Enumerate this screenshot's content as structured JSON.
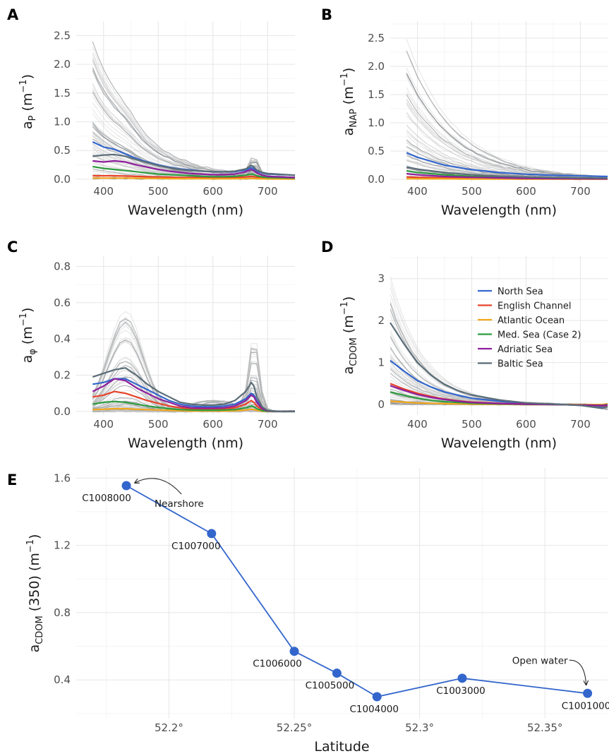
{
  "chart_data": [
    {
      "panel": "A",
      "type": "line",
      "xlabel": "Wavelength (nm)",
      "ylabel": {
        "base": "a",
        "sub": "P",
        "unit": "(m",
        "sup": "−1",
        "close": ")"
      },
      "xlim": [
        350,
        750
      ],
      "ylim": [
        -0.05,
        2.75
      ],
      "xticks": [
        400,
        500,
        600,
        700
      ],
      "yticks": [
        0.0,
        0.5,
        1.0,
        1.5,
        2.0,
        2.5
      ],
      "ytick_labels": [
        "0.0",
        "0.5",
        "1.0",
        "1.5",
        "2.0",
        "2.5"
      ],
      "x": [
        380,
        400,
        420,
        440,
        460,
        480,
        500,
        520,
        540,
        560,
        580,
        600,
        620,
        640,
        660,
        670,
        675,
        680,
        690,
        700,
        750
      ],
      "series": [
        {
          "name": "North Sea",
          "values": [
            0.65,
            0.56,
            0.52,
            0.44,
            0.36,
            0.3,
            0.25,
            0.21,
            0.18,
            0.16,
            0.14,
            0.13,
            0.13,
            0.13,
            0.16,
            0.2,
            0.18,
            0.14,
            0.11,
            0.09,
            0.07
          ]
        },
        {
          "name": "English Channel",
          "values": [
            0.06,
            0.06,
            0.06,
            0.055,
            0.05,
            0.045,
            0.04,
            0.035,
            0.03,
            0.03,
            0.028,
            0.026,
            0.026,
            0.03,
            0.04,
            0.05,
            0.045,
            0.035,
            0.025,
            0.02,
            0.015
          ]
        },
        {
          "name": "Atlantic Ocean",
          "values": [
            0.02,
            0.02,
            0.02,
            0.02,
            0.018,
            0.016,
            0.014,
            0.012,
            0.01,
            0.01,
            0.009,
            0.008,
            0.008,
            0.009,
            0.012,
            0.015,
            0.013,
            0.01,
            0.007,
            0.005,
            0.003
          ]
        },
        {
          "name": "Med. Sea (Case 2)",
          "values": [
            0.22,
            0.19,
            0.17,
            0.15,
            0.13,
            0.11,
            0.09,
            0.08,
            0.07,
            0.06,
            0.05,
            0.045,
            0.045,
            0.05,
            0.07,
            0.09,
            0.08,
            0.06,
            0.04,
            0.03,
            0.02
          ]
        },
        {
          "name": "Adriatic Sea",
          "values": [
            0.32,
            0.3,
            0.32,
            0.3,
            0.25,
            0.21,
            0.17,
            0.14,
            0.12,
            0.1,
            0.09,
            0.08,
            0.08,
            0.09,
            0.13,
            0.17,
            0.15,
            0.11,
            0.07,
            0.05,
            0.03
          ]
        },
        {
          "name": "Baltic Sea",
          "values": [
            0.4,
            0.42,
            0.43,
            0.4,
            0.34,
            0.29,
            0.24,
            0.2,
            0.17,
            0.15,
            0.14,
            0.13,
            0.13,
            0.14,
            0.18,
            0.24,
            0.21,
            0.16,
            0.12,
            0.1,
            0.07
          ]
        }
      ]
    },
    {
      "panel": "B",
      "type": "line",
      "xlabel": "Wavelength (nm)",
      "ylabel": {
        "base": "a",
        "sub": "NAP",
        "unit": "(m",
        "sup": "−1",
        "close": ")"
      },
      "xlim": [
        350,
        750
      ],
      "ylim": [
        -0.05,
        2.8
      ],
      "xticks": [
        400,
        500,
        600,
        700
      ],
      "yticks": [
        0.0,
        0.5,
        1.0,
        1.5,
        2.0,
        2.5
      ],
      "ytick_labels": [
        "0.0",
        "0.5",
        "1.0",
        "1.5",
        "2.0",
        "2.5"
      ],
      "x": [
        380,
        400,
        450,
        500,
        550,
        600,
        650,
        700,
        750
      ],
      "series": [
        {
          "name": "North Sea",
          "values": [
            0.47,
            0.39,
            0.25,
            0.17,
            0.12,
            0.09,
            0.07,
            0.06,
            0.05
          ]
        },
        {
          "name": "English Channel",
          "values": [
            0.04,
            0.035,
            0.025,
            0.018,
            0.013,
            0.01,
            0.008,
            0.006,
            0.005
          ]
        },
        {
          "name": "Atlantic Ocean",
          "values": [
            0.01,
            0.009,
            0.007,
            0.005,
            0.004,
            0.003,
            0.002,
            0.002,
            0.001
          ]
        },
        {
          "name": "Med. Sea (Case 2)",
          "values": [
            0.15,
            0.12,
            0.08,
            0.05,
            0.035,
            0.025,
            0.02,
            0.015,
            0.01
          ]
        },
        {
          "name": "Adriatic Sea",
          "values": [
            0.1,
            0.08,
            0.05,
            0.035,
            0.025,
            0.018,
            0.013,
            0.01,
            0.008
          ]
        },
        {
          "name": "Baltic Sea",
          "values": [
            0.22,
            0.18,
            0.12,
            0.08,
            0.055,
            0.04,
            0.03,
            0.025,
            0.02
          ]
        }
      ]
    },
    {
      "panel": "C",
      "type": "line",
      "xlabel": "Wavelength (nm)",
      "ylabel": {
        "base": "a",
        "sub": "φ",
        "unit": "(m",
        "sup": "−1",
        "close": ")"
      },
      "xlim": [
        350,
        750
      ],
      "ylim": [
        -0.02,
        0.86
      ],
      "xticks": [
        400,
        500,
        600,
        700
      ],
      "yticks": [
        0.0,
        0.2,
        0.4,
        0.6,
        0.8
      ],
      "ytick_labels": [
        "0.0",
        "0.2",
        "0.4",
        "0.6",
        "0.8"
      ],
      "x": [
        380,
        400,
        420,
        440,
        460,
        480,
        500,
        520,
        540,
        560,
        580,
        600,
        620,
        640,
        660,
        670,
        675,
        680,
        690,
        700,
        720,
        750
      ],
      "series": [
        {
          "name": "North Sea",
          "values": [
            0.15,
            0.16,
            0.18,
            0.18,
            0.15,
            0.12,
            0.09,
            0.06,
            0.04,
            0.03,
            0.025,
            0.025,
            0.03,
            0.04,
            0.07,
            0.1,
            0.09,
            0.06,
            0.02,
            0.005,
            0.0,
            0.0
          ]
        },
        {
          "name": "English Channel",
          "values": [
            0.08,
            0.09,
            0.11,
            0.1,
            0.08,
            0.06,
            0.045,
            0.03,
            0.02,
            0.015,
            0.012,
            0.012,
            0.015,
            0.02,
            0.04,
            0.06,
            0.05,
            0.03,
            0.01,
            0.003,
            0.0,
            0.0
          ]
        },
        {
          "name": "Atlantic Ocean",
          "values": [
            0.01,
            0.012,
            0.015,
            0.015,
            0.012,
            0.01,
            0.008,
            0.006,
            0.004,
            0.003,
            0.003,
            0.003,
            0.003,
            0.004,
            0.008,
            0.012,
            0.01,
            0.006,
            0.002,
            0.0,
            0.0,
            0.0
          ]
        },
        {
          "name": "Med. Sea (Case 2)",
          "values": [
            0.04,
            0.05,
            0.055,
            0.05,
            0.04,
            0.03,
            0.022,
            0.015,
            0.01,
            0.008,
            0.007,
            0.007,
            0.008,
            0.01,
            0.02,
            0.03,
            0.025,
            0.015,
            0.005,
            0.001,
            0.0,
            0.0
          ]
        },
        {
          "name": "Adriatic Sea",
          "values": [
            0.11,
            0.14,
            0.18,
            0.17,
            0.13,
            0.1,
            0.07,
            0.05,
            0.03,
            0.02,
            0.018,
            0.018,
            0.02,
            0.03,
            0.06,
            0.09,
            0.08,
            0.05,
            0.015,
            0.003,
            0.0,
            0.0
          ]
        },
        {
          "name": "Baltic Sea",
          "values": [
            0.19,
            0.21,
            0.23,
            0.24,
            0.2,
            0.15,
            0.11,
            0.08,
            0.05,
            0.04,
            0.035,
            0.035,
            0.04,
            0.06,
            0.11,
            0.16,
            0.14,
            0.08,
            0.025,
            0.005,
            0.0,
            0.0
          ]
        }
      ]
    },
    {
      "panel": "D",
      "type": "line",
      "xlabel": "Wavelength (nm)",
      "ylabel": {
        "base": "a",
        "sub": "CDOM",
        "unit": "(m",
        "sup": "−1",
        "close": ")"
      },
      "xlim": [
        350,
        750
      ],
      "ylim": [
        -0.25,
        3.55
      ],
      "xticks": [
        400,
        500,
        600,
        700
      ],
      "yticks": [
        0,
        1,
        2,
        3
      ],
      "ytick_labels": [
        "0",
        "1",
        "2",
        "3"
      ],
      "legend": [
        "North Sea",
        "English Channel",
        "Atlantic Ocean",
        "Med. Sea (Case 2)",
        "Adriatic Sea",
        "Baltic Sea"
      ],
      "legend_position": "top-right",
      "x": [
        350,
        375,
        400,
        425,
        450,
        475,
        500,
        550,
        600,
        650,
        700,
        740,
        750
      ],
      "series": [
        {
          "name": "North Sea",
          "values": [
            1.05,
            0.8,
            0.57,
            0.42,
            0.3,
            0.22,
            0.15,
            0.08,
            0.03,
            0.01,
            -0.02,
            -0.05,
            -0.03
          ]
        },
        {
          "name": "English Channel",
          "values": [
            0.5,
            0.37,
            0.27,
            0.19,
            0.13,
            0.09,
            0.06,
            0.03,
            0.01,
            0.0,
            -0.01,
            -0.03,
            -0.02
          ]
        },
        {
          "name": "Atlantic Ocean",
          "values": [
            0.08,
            0.06,
            0.04,
            0.03,
            0.02,
            0.015,
            0.01,
            0.005,
            0.0,
            0.0,
            0.0,
            0.0,
            0.02
          ]
        },
        {
          "name": "Med. Sea (Case 2)",
          "values": [
            0.3,
            0.22,
            0.15,
            0.1,
            0.07,
            0.05,
            0.03,
            0.015,
            0.005,
            0.0,
            -0.01,
            -0.02,
            0.0
          ]
        },
        {
          "name": "Adriatic Sea",
          "values": [
            0.45,
            0.34,
            0.24,
            0.17,
            0.12,
            0.08,
            0.05,
            0.025,
            0.01,
            0.0,
            -0.01,
            -0.02,
            -0.01
          ]
        },
        {
          "name": "Baltic Sea",
          "values": [
            1.95,
            1.45,
            1.0,
            0.7,
            0.48,
            0.33,
            0.23,
            0.11,
            0.04,
            0.01,
            -0.02,
            -0.09,
            -0.05
          ]
        }
      ]
    },
    {
      "panel": "E",
      "type": "line",
      "xlabel": "Latitude",
      "ylabel": {
        "base": "a",
        "sub": "CDOM",
        "unit": "(350) (m",
        "sup": "−1",
        "close": ")"
      },
      "xlim": [
        52.163,
        52.375
      ],
      "ylim": [
        0.17,
        1.66
      ],
      "xticks": [
        52.2,
        52.25,
        52.3,
        52.35
      ],
      "xtick_labels": [
        "52.2°",
        "52.25°",
        "52.3°",
        "52.35°"
      ],
      "yticks": [
        0.4,
        0.8,
        1.2,
        1.6
      ],
      "ytick_labels": [
        "0.4",
        "0.8",
        "1.2",
        "1.6"
      ],
      "color": "#3366cc",
      "points": [
        {
          "station": "C1008000",
          "x": 52.183,
          "y": 1.555
        },
        {
          "station": "C1007000",
          "x": 52.217,
          "y": 1.27
        },
        {
          "station": "C1006000",
          "x": 52.25,
          "y": 0.57
        },
        {
          "station": "C1005000",
          "x": 52.267,
          "y": 0.44
        },
        {
          "station": "C1004000",
          "x": 52.283,
          "y": 0.3
        },
        {
          "station": "C1003000",
          "x": 52.317,
          "y": 0.41
        },
        {
          "station": "C1001000",
          "x": 52.367,
          "y": 0.32
        }
      ],
      "annotations": [
        {
          "text": "Nearshore",
          "station": "C1008000"
        },
        {
          "text": "Open water",
          "station": "C1001000"
        }
      ]
    }
  ],
  "colors": {
    "North Sea": "#3366cc",
    "English Channel": "#e8432b",
    "Atlantic Ocean": "#f2a71b",
    "Med. Sea (Case 2)": "#2e9b3f",
    "Adriatic Sea": "#8e1f9c",
    "Baltic Sea": "#5b6d78",
    "background_spectra": "#bfbfbf",
    "dark_background_spectra": "#6b7378"
  }
}
